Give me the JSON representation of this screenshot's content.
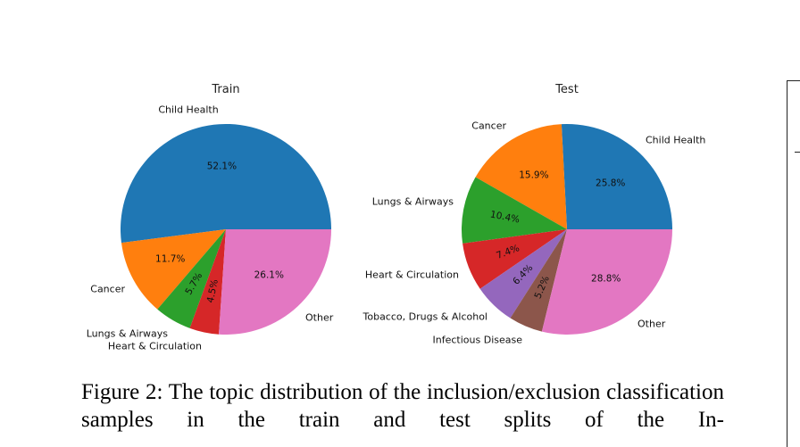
{
  "caption": "Figure 2: The topic distribution of the inclusion/exclusion classification samples in the train and test splits of the In-",
  "chart_data": [
    {
      "type": "pie",
      "title": "Train",
      "slices": [
        {
          "label": "Child Health",
          "value": 52.1,
          "pct": "52.1%",
          "color": "#1f77b4"
        },
        {
          "label": "Cancer",
          "value": 11.7,
          "pct": "11.7%",
          "color": "#ff7f0e"
        },
        {
          "label": "Lungs & Airways",
          "value": 5.7,
          "pct": "5.7%",
          "color": "#2ca02c"
        },
        {
          "label": "Heart & Circulation",
          "value": 4.5,
          "pct": "4.5%",
          "color": "#d62728"
        },
        {
          "label": "Other",
          "value": 26.1,
          "pct": "26.1%",
          "color": "#e377c2"
        }
      ]
    },
    {
      "type": "pie",
      "title": "Test",
      "slices": [
        {
          "label": "Child Health",
          "value": 25.8,
          "pct": "25.8%",
          "color": "#1f77b4"
        },
        {
          "label": "Cancer",
          "value": 15.9,
          "pct": "15.9%",
          "color": "#ff7f0e"
        },
        {
          "label": "Lungs & Airways",
          "value": 10.4,
          "pct": "10.4%",
          "color": "#2ca02c"
        },
        {
          "label": "Heart & Circulation",
          "value": 7.4,
          "pct": "7.4%",
          "color": "#d62728"
        },
        {
          "label": "Tobacco, Drugs & Alcohol",
          "value": 6.4,
          "pct": "6.4%",
          "color": "#9467bd"
        },
        {
          "label": "Infectious Disease",
          "value": 5.2,
          "pct": "5.2%",
          "color": "#8c564b"
        },
        {
          "label": "Other",
          "value": 28.8,
          "pct": "28.8%",
          "color": "#e377c2"
        }
      ]
    }
  ]
}
